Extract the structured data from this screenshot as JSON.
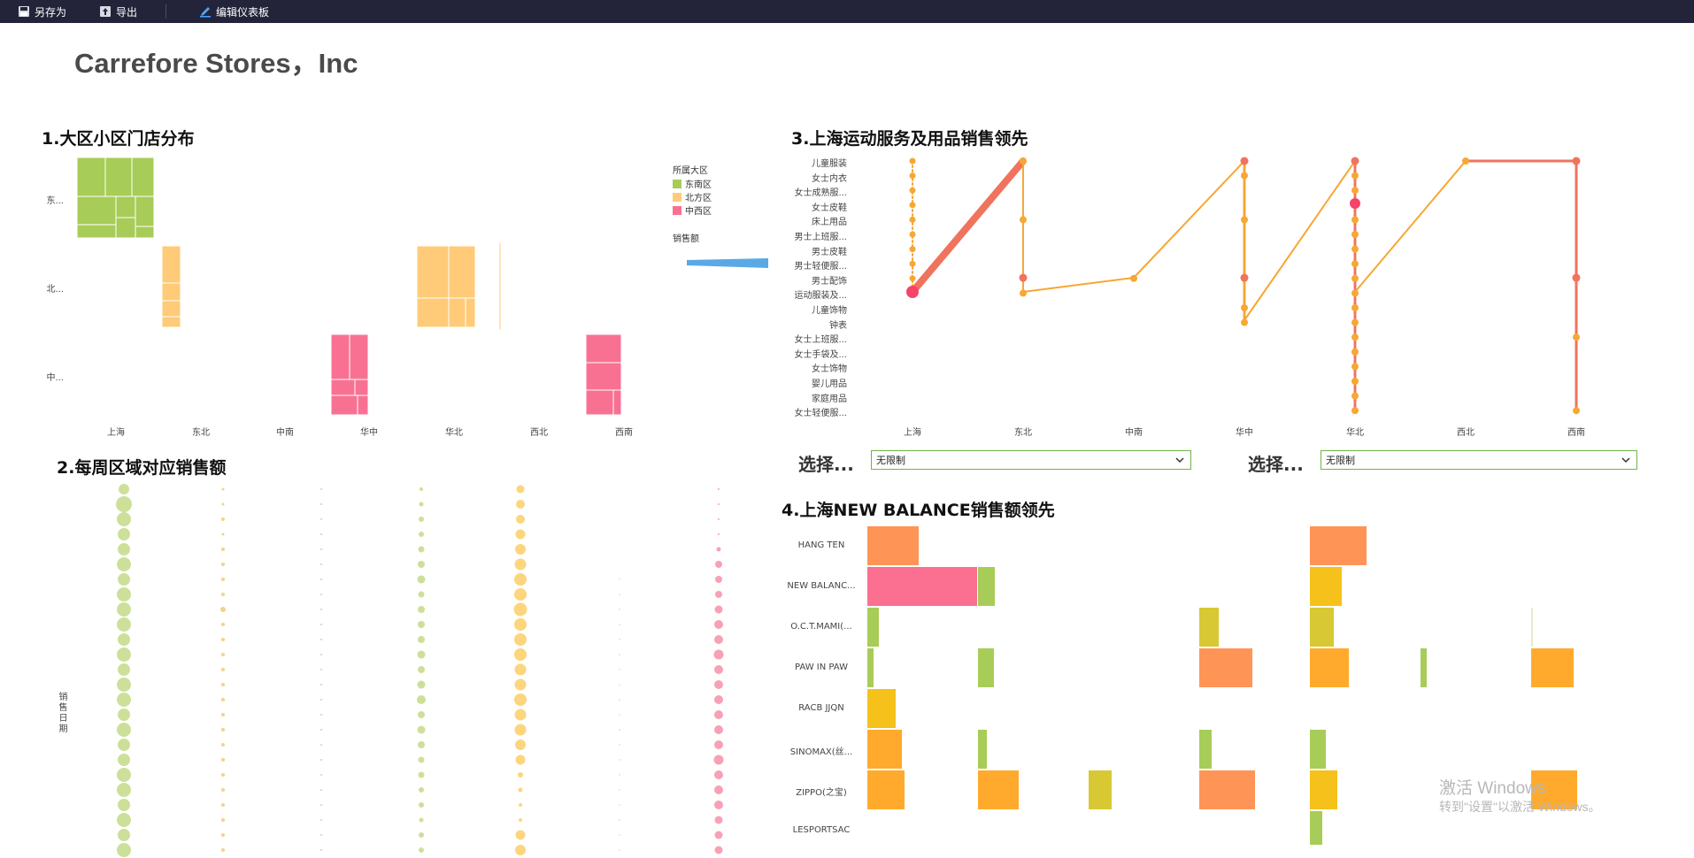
{
  "toolbar": {
    "save_as": "另存为",
    "export": "导出",
    "edit_dashboard": "编辑仪表板"
  },
  "page_title": "Carrefore Stores，Inc",
  "section1": {
    "title": "1.大区小区门店分布",
    "y_labels": [
      "东...",
      "北...",
      "中..."
    ],
    "x_labels": [
      "上海",
      "东北",
      "中南",
      "华中",
      "华北",
      "西北",
      "西南"
    ],
    "legend_region_title": "所属大区",
    "legend_regions": [
      {
        "label": "东南区",
        "color": "#a8cc58"
      },
      {
        "label": "北方区",
        "color": "#ffcb78"
      },
      {
        "label": "中西区",
        "color": "#f87193"
      }
    ],
    "legend_sales_title": "销售额"
  },
  "section2": {
    "title": "2.每周区域对应销售额",
    "y_axis_label": "销售日期"
  },
  "section3": {
    "title": "3.上海运动服务及用品销售领先",
    "y_labels": [
      "儿童服装",
      "女士内衣",
      "女士成熟服...",
      "女士皮鞋",
      "床上用品",
      "男士上班服...",
      "男士皮鞋",
      "男士轻便服...",
      "男士配饰",
      "运动服装及...",
      "儿童饰物",
      "钟表",
      "女士上班服...",
      "女士手袋及...",
      "女士饰物",
      "婴儿用品",
      "家庭用品",
      "女士轻便服..."
    ],
    "x_labels": [
      "上海",
      "东北",
      "中南",
      "华中",
      "华北",
      "西北",
      "西南"
    ]
  },
  "filters": {
    "label1": "选择...",
    "value1": "无限制",
    "label2": "选择...",
    "value2": "无限制"
  },
  "section4": {
    "title": "4.上海NEW BALANCE销售额领先",
    "y_labels": [
      "HANG TEN",
      "NEW BALANC...",
      "O.C.T.MAMI(...",
      "PAW IN PAW",
      "RACB JJQN",
      "SINOMAX(丝...",
      "ZIPPO(之宝)",
      "LESPORTSAC"
    ]
  },
  "watermark": {
    "line1": "激活 Windows",
    "line2": "转到\"设置\"以激活 Windows。"
  }
}
